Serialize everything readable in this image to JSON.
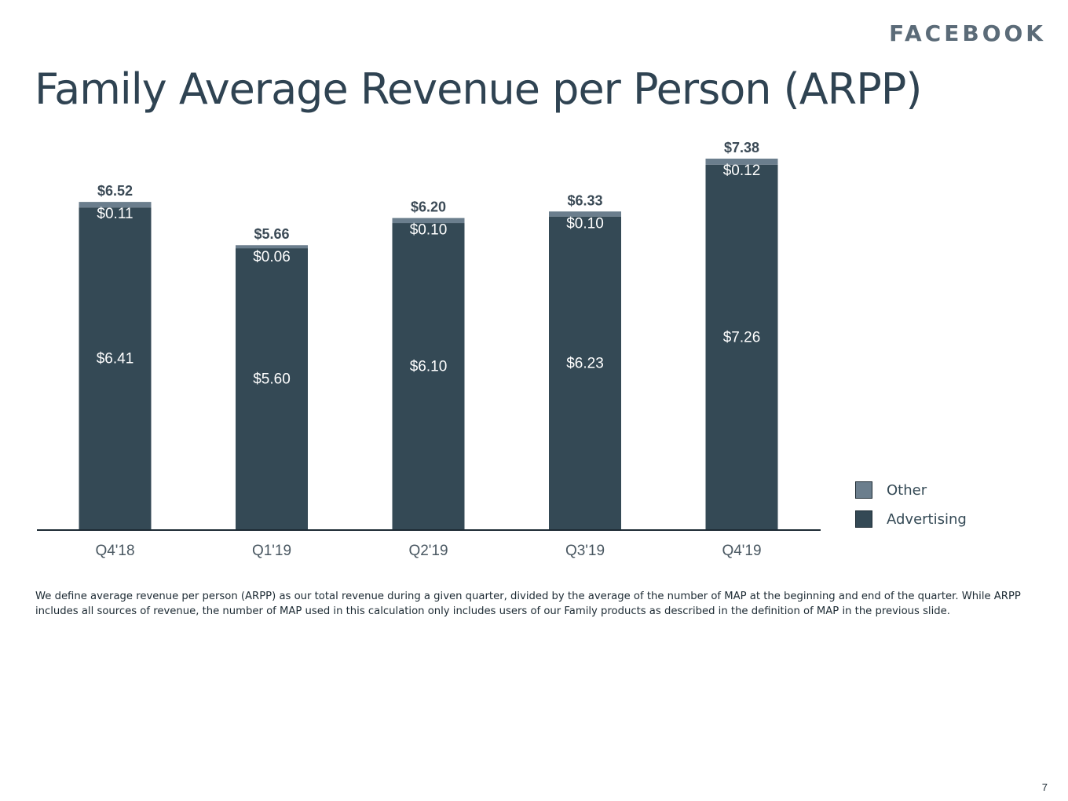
{
  "slide": {
    "brand": "FACEBOOK",
    "title": "Family Average Revenue per Person (ARPP)",
    "footnote": "We define average revenue per person (ARPP) as our total revenue during a given quarter, divided by the average of the number of MAP at the beginning and end of the quarter. While ARPP includes all sources of revenue, the number of MAP used in this calculation only includes users of our Family products as described in the definition of MAP in the previous slide.",
    "page_number": "7"
  },
  "colors": {
    "advertising": "#344955",
    "other": "#6b7e8d",
    "axis": "#1c2a33",
    "total_label": "#3b4a56",
    "tick_label": "#4a5862",
    "bar_label": "#ffffff"
  },
  "chart_data": {
    "type": "bar",
    "stacked": true,
    "categories": [
      "Q4'18",
      "Q1'19",
      "Q2'19",
      "Q3'19",
      "Q4'19"
    ],
    "series": [
      {
        "name": "Advertising",
        "values": [
          6.41,
          5.6,
          6.1,
          6.23,
          7.26
        ],
        "labels": [
          "$6.41",
          "$5.60",
          "$6.10",
          "$6.23",
          "$7.26"
        ]
      },
      {
        "name": "Other",
        "values": [
          0.11,
          0.06,
          0.1,
          0.1,
          0.12
        ],
        "labels": [
          "$0.11",
          "$0.06",
          "$0.10",
          "$0.10",
          "$0.12"
        ]
      }
    ],
    "totals": [
      6.52,
      5.66,
      6.2,
      6.33,
      7.38
    ],
    "total_labels": [
      "$6.52",
      "$5.66",
      "$6.20",
      "$6.33",
      "$7.38"
    ],
    "ylim": [
      0,
      7.38
    ],
    "grid": false,
    "legend_position": "right",
    "legend": [
      "Other",
      "Advertising"
    ]
  }
}
